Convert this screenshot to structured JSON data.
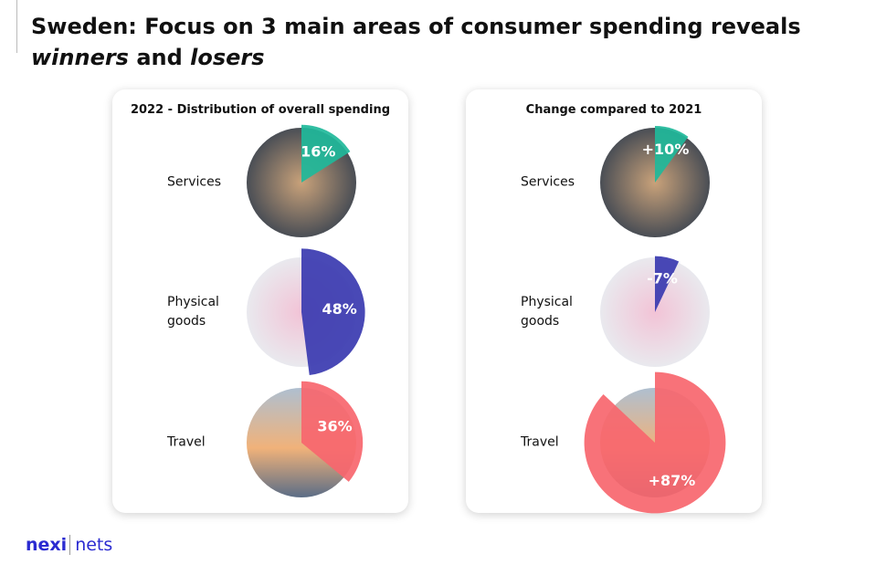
{
  "title_parts": [
    "Sweden: Focus on 3 main areas of consumer spending reveals",
    "winners",
    "and",
    "losers"
  ],
  "logo": [
    "nexi",
    "nets"
  ],
  "chart_data": [
    {
      "type": "sector",
      "title": "2022 - Distribution of overall spending",
      "categories": [
        "Services",
        "Physical goods",
        "Travel"
      ],
      "values": [
        16,
        48,
        36
      ],
      "value_labels": [
        "16%",
        "48%",
        "36%"
      ],
      "colors": [
        "#1fb89a",
        "#3a39b0",
        "#f7666e"
      ]
    },
    {
      "type": "sector",
      "title": "Change compared to 2021",
      "categories": [
        "Services",
        "Physical goods",
        "Travel"
      ],
      "values": [
        10,
        -7,
        87
      ],
      "value_labels": [
        "+10%",
        "-7%",
        "+87%"
      ],
      "colors": [
        "#1fb89a",
        "#3a39b0",
        "#f7666e"
      ]
    }
  ]
}
